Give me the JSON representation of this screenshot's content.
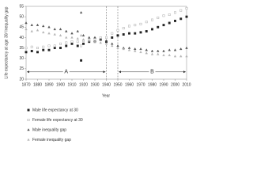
{
  "chart_data": {
    "type": "scatter",
    "y_label": "Life expectancy at age 30/ Inequality gap",
    "x_label": "Year",
    "x": [
      1870,
      1875,
      1880,
      1885,
      1890,
      1895,
      1900,
      1905,
      1910,
      1915,
      1918,
      1920,
      1925,
      1930,
      1935,
      1940,
      1945,
      1950,
      1955,
      1960,
      1965,
      1970,
      1975,
      1980,
      1985,
      1990,
      1995,
      2000,
      2005,
      2010
    ],
    "series": [
      {
        "name": "Male life expectancy at 30",
        "color": "#222222",
        "marker": "square",
        "filled": true,
        "values": [
          33,
          33.5,
          33,
          34,
          34,
          35,
          35,
          36,
          37,
          36,
          29,
          37,
          38,
          38,
          39,
          38,
          40,
          41,
          41.5,
          42,
          42,
          42.5,
          43,
          44,
          45,
          46,
          47,
          48,
          49,
          50
        ]
      },
      {
        "name": "Female life expectancy at 30",
        "color": "#aaaaaa",
        "marker": "square",
        "filled": false,
        "values": [
          35,
          35.5,
          35,
          35.5,
          36,
          36,
          37,
          37.5,
          38,
          38,
          36,
          38.5,
          39,
          39.5,
          40,
          40,
          42,
          43.5,
          44.5,
          45.5,
          46,
          46.5,
          47.5,
          48.5,
          49.5,
          50.5,
          51,
          52,
          53,
          54
        ]
      },
      {
        "name": "Male inequality gap",
        "color": "#555555",
        "marker": "triangle",
        "filled": true,
        "values": [
          47,
          46,
          46,
          45.5,
          45,
          44,
          44,
          43,
          42,
          43,
          52,
          41,
          40,
          40,
          39,
          38.5,
          37,
          36,
          35,
          35,
          34.5,
          34.5,
          34,
          33.5,
          33.5,
          33.5,
          34,
          34,
          34.5,
          35
        ]
      },
      {
        "name": "Female inequality gap",
        "color": "#b5b5b5",
        "marker": "triangle",
        "filled": true,
        "values": [
          44,
          43,
          43.5,
          42.5,
          42,
          41.5,
          41,
          40,
          40,
          39.5,
          41,
          39,
          38.5,
          38,
          37.5,
          37,
          36,
          35,
          34.5,
          34,
          33.5,
          33,
          32.5,
          32,
          32,
          31.5,
          31.5,
          31,
          31,
          31
        ]
      }
    ],
    "regions": [
      {
        "label": "A",
        "start": 1870,
        "end": 1940
      },
      {
        "label": "B",
        "start": 1950,
        "end": 2010
      }
    ],
    "xlim": [
      1870,
      2010
    ],
    "xticks": [
      1870,
      1880,
      1890,
      1900,
      1910,
      1920,
      1930,
      1940,
      1950,
      1960,
      1970,
      1980,
      1990,
      2000,
      2010
    ],
    "ylim": [
      20,
      55
    ],
    "yticks": [
      20,
      25,
      30,
      35,
      40,
      45,
      50,
      55
    ],
    "legend": "bottom"
  }
}
